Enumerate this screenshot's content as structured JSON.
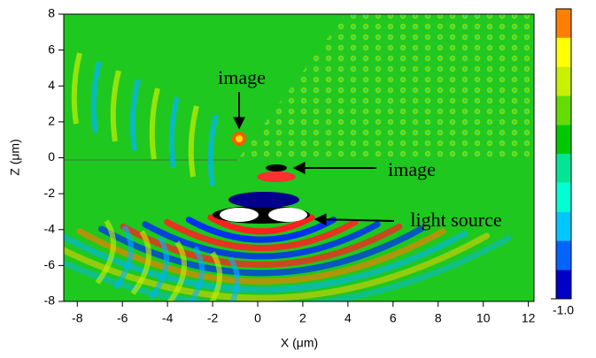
{
  "chart_data": {
    "type": "field",
    "xlabel": "X (μm)",
    "ylabel": "Z (μm)",
    "xlim": [
      -8.6,
      12.25
    ],
    "ylim": [
      -8,
      8
    ],
    "xticks": [
      -8,
      -6,
      -4,
      -2,
      0,
      2,
      4,
      6,
      8,
      10,
      12
    ],
    "yticks": [
      -8,
      -6,
      -4,
      -2,
      0,
      2,
      4,
      6,
      8
    ],
    "annotations": [
      "image",
      "image",
      "light source"
    ],
    "colorbar": {
      "colors": [
        "#0000c8",
        "#0064ff",
        "#00c8ff",
        "#00ffd2",
        "#00e696",
        "#00c800",
        "#64dc00",
        "#c8f000",
        "#ffff00",
        "#ff8000"
      ],
      "ticks": [
        {
          "value": -1,
          "label": "-1.0"
        }
      ],
      "lim": [
        -1,
        1
      ]
    }
  }
}
